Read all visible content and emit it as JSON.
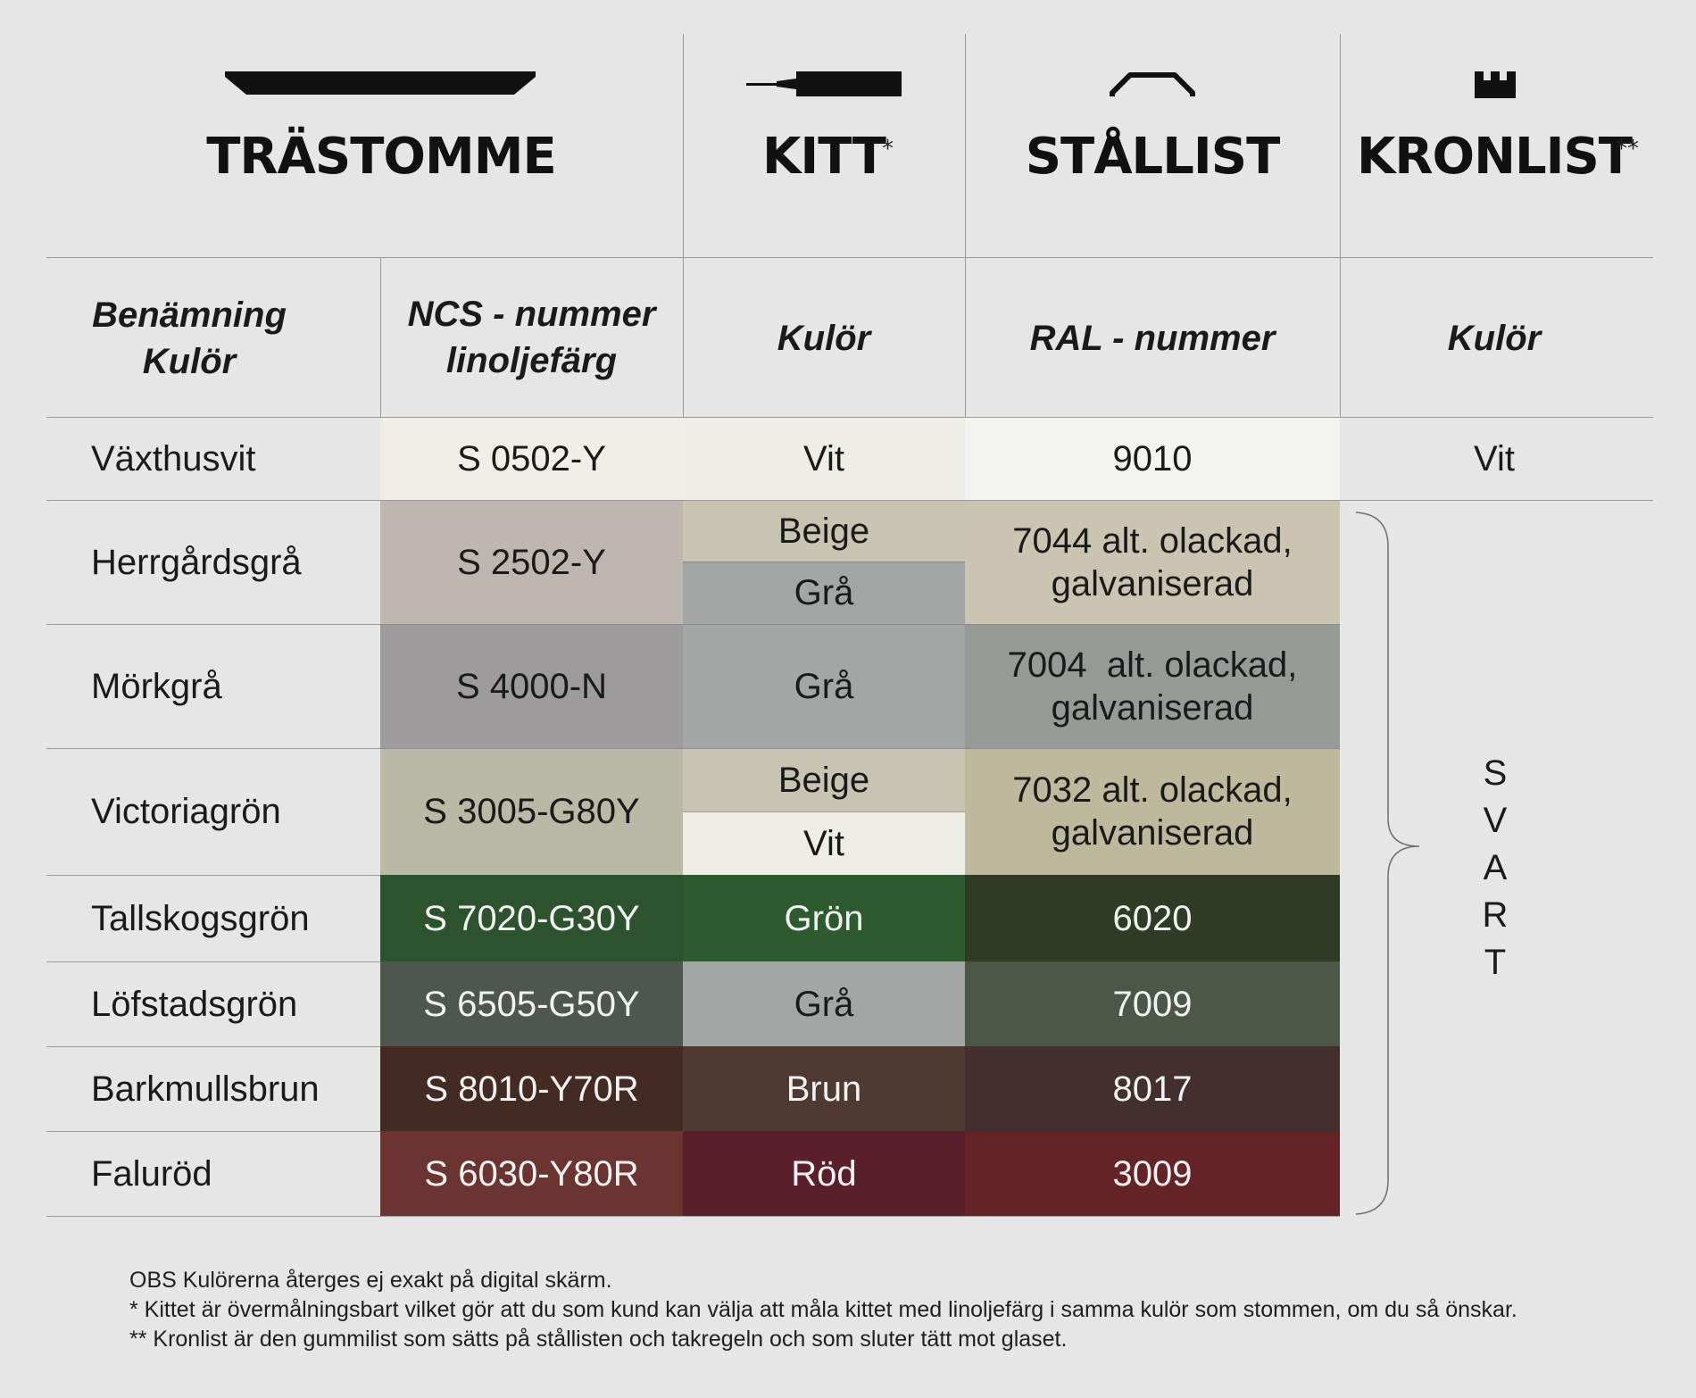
{
  "headers": {
    "trastomme": "TRÄSTOMME",
    "kitt": "KITT",
    "kitt_mark": "*",
    "stallist": "STÅLLIST",
    "kronlist": "KRONLIST",
    "kronlist_mark": "**"
  },
  "subheaders": {
    "benamning": "Benämning",
    "benamning_kulor": "Kulör",
    "ncs": "NCS - nummer",
    "ncs_sub": "linoljefärg",
    "kitt_kulor": "Kulör",
    "ral": "RAL - nummer",
    "kronlist_kulor": "Kulör"
  },
  "icons": {
    "trastomme": "wooden-frame-profile-icon",
    "kitt": "putty-knife-icon",
    "stallist": "steel-bar-profile-icon",
    "kronlist": "crown-strip-profile-icon"
  },
  "rows": [
    {
      "name": "Växthusvit",
      "ncs": "S 0502-Y",
      "ncs_color": "#f1ede8",
      "kitt": [
        {
          "label": "Vit",
          "color": "#efeee6"
        }
      ],
      "ral": "9010",
      "ral_color": "#f3f3ef",
      "kronlist": "Vit"
    },
    {
      "name": "Herrgårdsgrå",
      "ncs": "S 2502-Y",
      "ncs_color": "#bdb7b0",
      "kitt": [
        {
          "label": "Beige",
          "color": "#c8c4b2"
        },
        {
          "label": "Grå",
          "color": "#a2a7a5"
        }
      ],
      "ral": "7044 alt. olackad,",
      "ral2": "galvaniserad",
      "ral_color": "#c9c5b1"
    },
    {
      "name": "Mörkgrå",
      "ncs": "S 4000-N",
      "ncs_color": "#9d9b9c",
      "kitt": [
        {
          "label": "Grå",
          "color": "#a2a7a5"
        }
      ],
      "ral": "7004  alt. olackad,",
      "ral2": "galvaniserad",
      "ral_color": "#979b97"
    },
    {
      "name": "Victoriagrön",
      "ncs": "S 3005-G80Y",
      "ncs_color": "#b9b9a6",
      "kitt": [
        {
          "label": "Beige",
          "color": "#c8c4b2"
        },
        {
          "label": "Vit",
          "color": "#efeee6"
        }
      ],
      "ral": "7032 alt. olackad,",
      "ral2": "galvaniserad",
      "ral_color": "#bdb99c"
    },
    {
      "name": "Tallskogsgrön",
      "ncs": "S 7020-G30Y",
      "ncs_color": "#2d522e",
      "kitt": [
        {
          "label": "Grön",
          "color": "#2d5a2f"
        }
      ],
      "ral": "6020",
      "ral_color": "#303b25"
    },
    {
      "name": "Löfstadsgrön",
      "ncs": "S 6505-G50Y",
      "ncs_color": "#4f5650",
      "kitt": [
        {
          "label": "Grå",
          "color": "#a2a7a5"
        }
      ],
      "ral": "7009",
      "ral_color": "#4c5747"
    },
    {
      "name": "Barkmullsbrun",
      "ncs": "S 8010-Y70R",
      "ncs_color": "#432b24",
      "kitt": [
        {
          "label": "Brun",
          "color": "#4e3a31"
        }
      ],
      "ral": "8017",
      "ral_color": "#432f2d"
    },
    {
      "name": "Faluröd",
      "ncs": "S 6030-Y80R",
      "ncs_color": "#6b3430",
      "kitt": [
        {
          "label": "Röd",
          "color": "#5b1f2b"
        }
      ],
      "ral": "3009",
      "ral_color": "#642427"
    }
  ],
  "kronlist_group": [
    "S",
    "V",
    "A",
    "R",
    "T"
  ],
  "notes": [
    "OBS Kulörerna återges ej exakt på digital skärm.",
    "* Kittet är övermålningsbart vilket gör att du som kund kan välja att måla kittet med linoljefärg i samma kulör som stommen, om du så önskar.",
    "** Kronlist är den gummilist som sätts på stållisten och takregeln och som sluter tätt mot glaset."
  ]
}
